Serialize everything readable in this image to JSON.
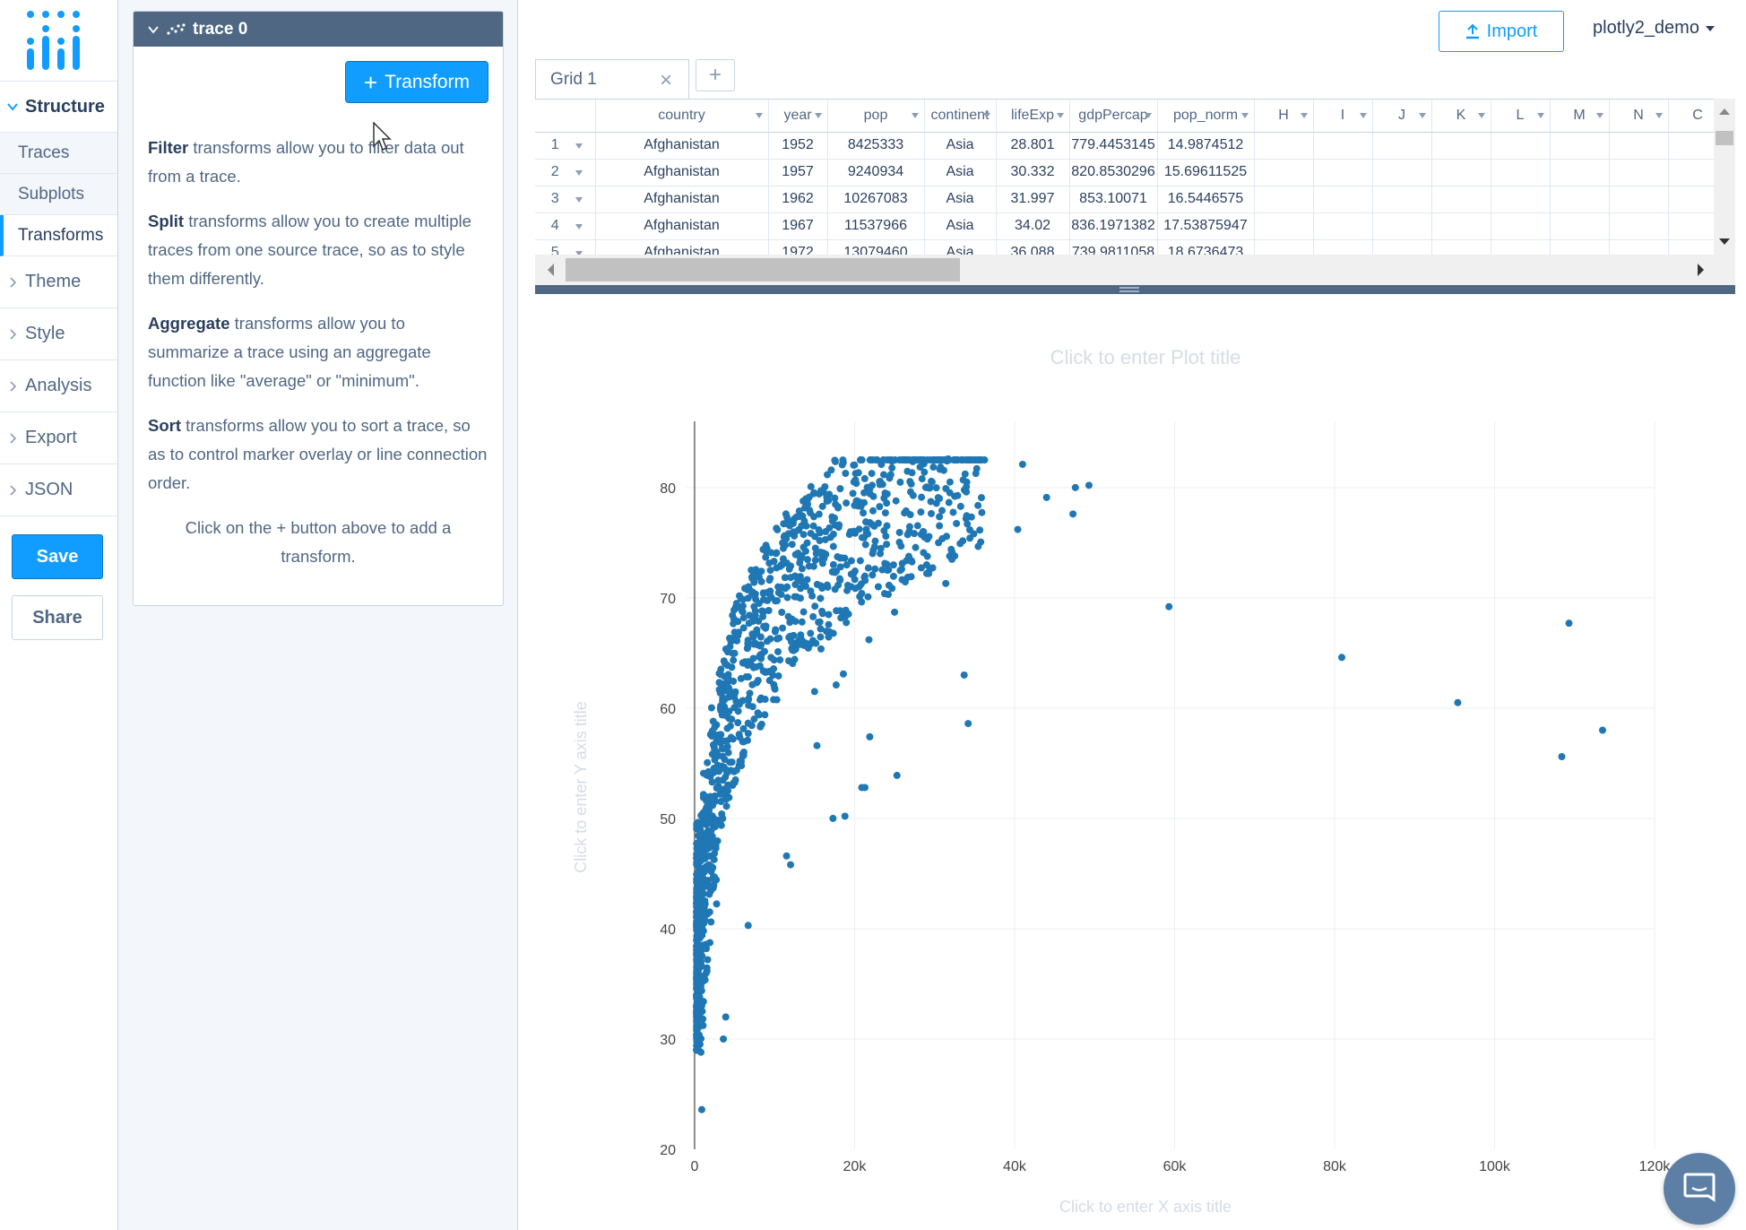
{
  "nav": {
    "sections": [
      {
        "label": "Structure",
        "open": true
      },
      {
        "label": "Theme",
        "open": false
      },
      {
        "label": "Style",
        "open": false
      },
      {
        "label": "Analysis",
        "open": false
      },
      {
        "label": "Export",
        "open": false
      },
      {
        "label": "JSON",
        "open": false
      }
    ],
    "structure_items": [
      "Traces",
      "Subplots",
      "Transforms"
    ],
    "active_item": "Transforms",
    "save_label": "Save",
    "share_label": "Share"
  },
  "panel": {
    "trace_title": "trace 0",
    "transform_button": "Transform",
    "info": [
      {
        "strong": "Filter",
        "text": " transforms allow you to filter data out from a trace."
      },
      {
        "strong": "Split",
        "text": " transforms allow you to create multiple traces from one source trace, so as to style them differently."
      },
      {
        "strong": "Aggregate",
        "text": " transforms allow you to summarize a trace using an aggregate function like \"average\" or \"minimum\"."
      },
      {
        "strong": "Sort",
        "text": " transforms allow you to sort a trace, so as to control marker overlay or line connection order."
      }
    ],
    "hint": "Click on the + button above to add a transform."
  },
  "topbar": {
    "import_label": "Import",
    "user": "plotly2_demo"
  },
  "grid": {
    "tab_label": "Grid 1",
    "columns": [
      "country",
      "year",
      "pop",
      "continent",
      "lifeExp",
      "gdpPercap",
      "pop_norm",
      "H",
      "I",
      "J",
      "K",
      "L",
      "M",
      "N",
      "C"
    ],
    "rows": [
      [
        "1",
        "Afghanistan",
        "1952",
        "8425333",
        "Asia",
        "28.801",
        "779.4453145",
        "14.9874512"
      ],
      [
        "2",
        "Afghanistan",
        "1957",
        "9240934",
        "Asia",
        "30.332",
        "820.8530296",
        "15.69611525"
      ],
      [
        "3",
        "Afghanistan",
        "1962",
        "10267083",
        "Asia",
        "31.997",
        "853.10071",
        "16.5446575"
      ],
      [
        "4",
        "Afghanistan",
        "1967",
        "11537966",
        "Asia",
        "34.02",
        "836.1971382",
        "17.53875947"
      ],
      [
        "5",
        "Afghanistan",
        "1972",
        "13079460",
        "Asia",
        "36.088",
        "739.9811058",
        "18.6736473"
      ]
    ]
  },
  "chart_data": {
    "type": "scatter",
    "title": "",
    "title_placeholder": "Click to enter Plot title",
    "xlabel": "",
    "xlabel_placeholder": "Click to enter X axis title",
    "ylabel": "",
    "ylabel_placeholder": "Click to enter Y axis title",
    "xlim": [
      -1000,
      120000
    ],
    "ylim": [
      20,
      86
    ],
    "x_ticks": [
      0,
      20000,
      40000,
      60000,
      80000,
      100000,
      120000
    ],
    "x_tick_labels": [
      "0",
      "20k",
      "40k",
      "60k",
      "80k",
      "100k",
      "120k"
    ],
    "y_ticks": [
      20,
      30,
      40,
      50,
      60,
      70,
      80
    ],
    "grid": true,
    "marker_color": "#1f77b4",
    "x_column": "gdpPercap",
    "y_column": "lifeExp",
    "outliers": [
      {
        "x": 41000,
        "y": 82.1
      },
      {
        "x": 49300,
        "y": 80.2
      },
      {
        "x": 47600,
        "y": 80.0
      },
      {
        "x": 44000,
        "y": 79.1
      },
      {
        "x": 40400,
        "y": 76.2
      },
      {
        "x": 47300,
        "y": 77.6
      },
      {
        "x": 34900,
        "y": 75.8
      },
      {
        "x": 31700,
        "y": 82.6
      },
      {
        "x": 59300,
        "y": 69.2
      },
      {
        "x": 80900,
        "y": 64.6
      },
      {
        "x": 95400,
        "y": 60.5
      },
      {
        "x": 109300,
        "y": 67.7
      },
      {
        "x": 108400,
        "y": 55.6
      },
      {
        "x": 113500,
        "y": 58.0
      },
      {
        "x": 31400,
        "y": 71.3
      },
      {
        "x": 33700,
        "y": 63.0
      },
      {
        "x": 34200,
        "y": 58.6
      },
      {
        "x": 25000,
        "y": 68.7
      },
      {
        "x": 21900,
        "y": 57.4
      },
      {
        "x": 25300,
        "y": 53.9
      },
      {
        "x": 21300,
        "y": 52.8
      },
      {
        "x": 20900,
        "y": 52.8
      },
      {
        "x": 17300,
        "y": 50.0
      },
      {
        "x": 18800,
        "y": 50.2
      },
      {
        "x": 21800,
        "y": 66.2
      },
      {
        "x": 18600,
        "y": 63.1
      },
      {
        "x": 17700,
        "y": 62.1
      },
      {
        "x": 15300,
        "y": 56.6
      },
      {
        "x": 15000,
        "y": 61.5
      },
      {
        "x": 12000,
        "y": 45.8
      },
      {
        "x": 11500,
        "y": 46.6
      },
      {
        "x": 6700,
        "y": 40.3
      },
      {
        "x": 3600,
        "y": 30.0
      },
      {
        "x": 3900,
        "y": 32.0
      },
      {
        "x": 900,
        "y": 23.6
      },
      {
        "x": 800,
        "y": 28.8
      }
    ]
  }
}
